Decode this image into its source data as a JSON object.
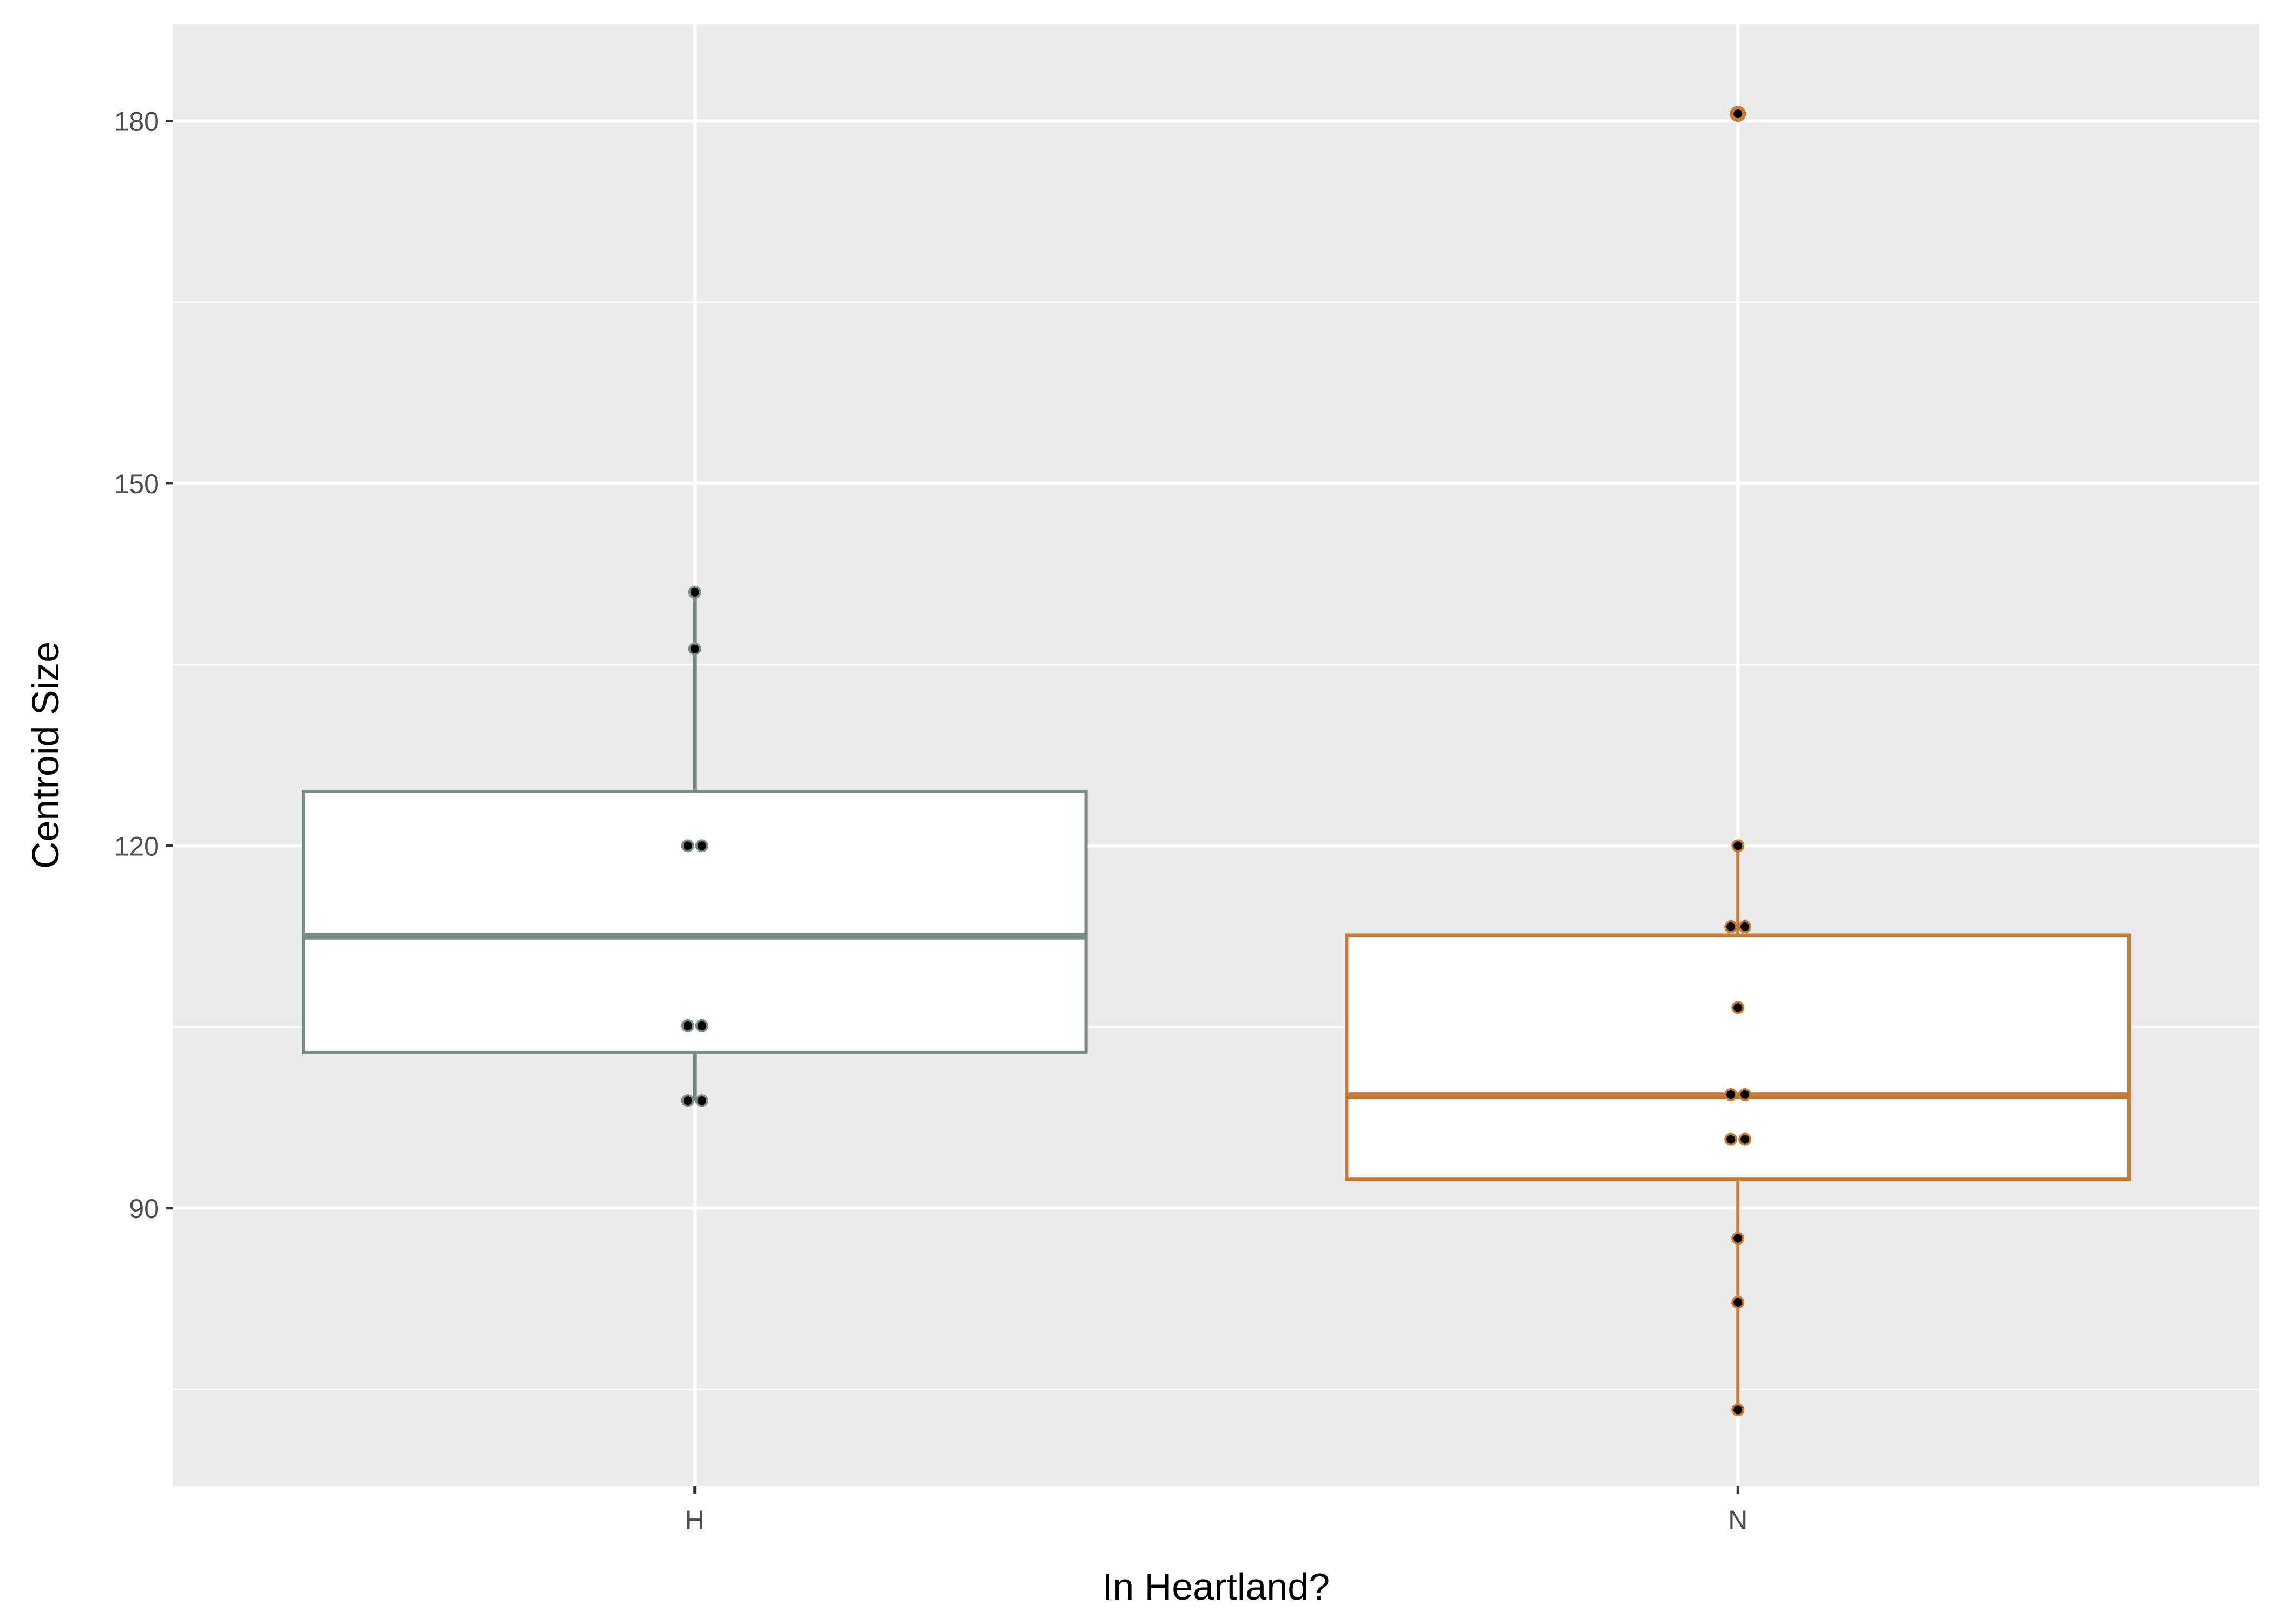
{
  "chart_data": {
    "type": "boxplot",
    "title": "",
    "xlabel": "In Heartland?",
    "ylabel": "Centroid Size",
    "categories": [
      "H",
      "N"
    ],
    "ylim": [
      67,
      188
    ],
    "y_ticks": [
      90,
      120,
      150,
      180
    ],
    "y_tick_labels": [
      "90",
      "120",
      "150",
      "180"
    ],
    "grid": true,
    "panel_background": "#ebebeb",
    "boxes": [
      {
        "category": "H",
        "color": "#7a8c86",
        "q1": 102.9,
        "median": 112.5,
        "q3": 124.5,
        "whisker_low": 98.9,
        "whisker_high": 141.0,
        "outliers": [],
        "points": [
          {
            "dodge": 0,
            "y": 141.0
          },
          {
            "dodge": 0,
            "y": 136.3
          },
          {
            "dodge": -1,
            "y": 120.0
          },
          {
            "dodge": 1,
            "y": 120.0
          },
          {
            "dodge": -1,
            "y": 105.1
          },
          {
            "dodge": 1,
            "y": 105.1
          },
          {
            "dodge": -1,
            "y": 98.9
          },
          {
            "dodge": 1,
            "y": 98.9
          }
        ]
      },
      {
        "category": "N",
        "color": "#c57a35",
        "q1": 92.4,
        "median": 99.3,
        "q3": 112.6,
        "whisker_low": 73.3,
        "whisker_high": 120.0,
        "outliers": [
          180.6
        ],
        "points": [
          {
            "dodge": 0,
            "y": 180.6
          },
          {
            "dodge": 0,
            "y": 120.0
          },
          {
            "dodge": -1,
            "y": 113.3
          },
          {
            "dodge": 1,
            "y": 113.3
          },
          {
            "dodge": 0,
            "y": 106.6
          },
          {
            "dodge": -1,
            "y": 99.4
          },
          {
            "dodge": 1,
            "y": 99.4
          },
          {
            "dodge": -1,
            "y": 95.7
          },
          {
            "dodge": 1,
            "y": 95.7
          },
          {
            "dodge": 0,
            "y": 87.5
          },
          {
            "dodge": 0,
            "y": 82.2
          },
          {
            "dodge": 0,
            "y": 73.3
          }
        ]
      }
    ]
  }
}
